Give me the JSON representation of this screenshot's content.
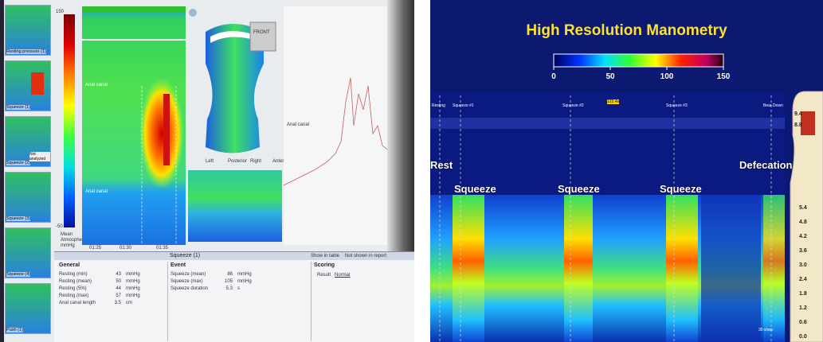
{
  "left_screen": {
    "thumbnails": [
      "Resting pressure (1)",
      "Squeeze (1)",
      "Squeeze (2)",
      "Squeeze (3)",
      "Squeeze (4)",
      "Push (1)"
    ],
    "thumbnail_note": "Not analyzed",
    "colorbar": {
      "top": "150",
      "bottom": "-50",
      "unit_lines": [
        "Mean",
        "Atmospheric",
        "mmHg"
      ]
    },
    "plot_labels": [
      "Anal canal",
      "Anal canal"
    ],
    "trace_label": "Anal canal",
    "orientation": [
      "Left",
      "Posterior",
      "Right",
      "Anterior"
    ],
    "front": "FRONT",
    "time_labels": [
      "01:25",
      "01:30",
      "01:35"
    ],
    "panel_title": "Squeeze (1)",
    "panel_buttons": [
      "Show in table",
      "Not shown in report"
    ],
    "general": {
      "heading": "General",
      "rows": [
        [
          "Resting (min)",
          "43",
          "mmHg"
        ],
        [
          "Resting (mean)",
          "50",
          "mmHg"
        ],
        [
          "Resting (5%)",
          "44",
          "mmHg"
        ],
        [
          "Resting (max)",
          "57",
          "mmHg"
        ],
        [
          "Anal canal length",
          "3.5",
          "cm"
        ]
      ]
    },
    "event": {
      "heading": "Event",
      "rows": [
        [
          "Squeeze (mean)",
          "86",
          "mmHg"
        ],
        [
          "Squeeze (max)",
          "105",
          "mmHg"
        ],
        [
          "Squeeze duration",
          "5.3",
          "s"
        ]
      ]
    },
    "scoring": {
      "heading": "Scoring",
      "label": "Result",
      "value": "Normal"
    }
  },
  "right_screen": {
    "title": "High Resolution Manometry",
    "colorbar": {
      "lim": [
        0,
        150
      ],
      "ticks": [
        0,
        50,
        100,
        150
      ]
    },
    "events": [
      "Resting",
      "Squeeze #1",
      "Squeeze #2",
      "Squeeze #3",
      "Bear Down"
    ],
    "marker": "122.4s",
    "phases": [
      "Rest",
      "Squeeze",
      "Squeeze",
      "Squeeze",
      "Defecation"
    ],
    "side_values": [
      "9.4",
      "8.8"
    ],
    "depths": [
      "5.4",
      "4.8",
      "4.2",
      "3.6",
      "3.0",
      "2.4",
      "1.8",
      "1.2",
      "0.6",
      "0.0"
    ],
    "scale_note": "30 s/sec"
  }
}
